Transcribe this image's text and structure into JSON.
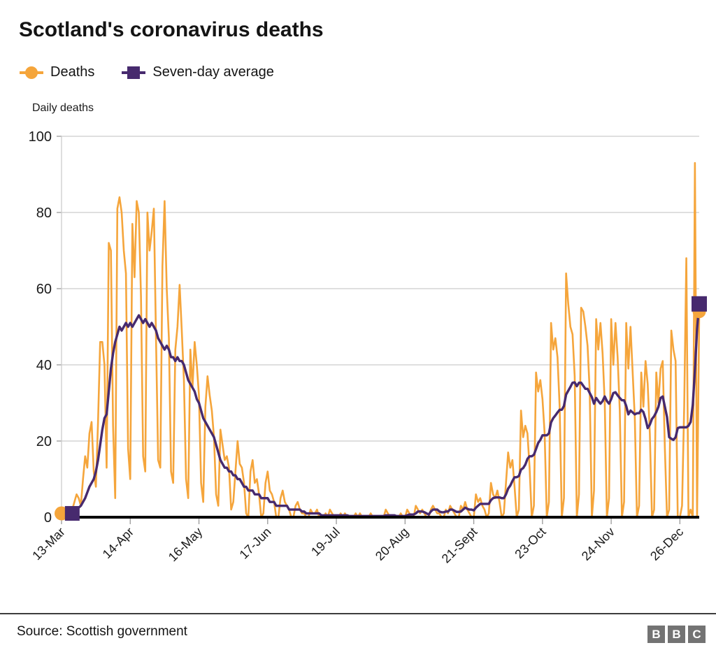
{
  "title": "Scotland's coronavirus deaths",
  "legend": [
    {
      "label": "Deaths",
      "marker": "circle",
      "color": "#f5a53b"
    },
    {
      "label": "Seven-day average",
      "marker": "square",
      "color": "#472a6e"
    }
  ],
  "axis_title": "Daily deaths",
  "source": "Source: Scottish government",
  "logo_letters": [
    "B",
    "B",
    "C"
  ],
  "colors": {
    "deaths_line": "#f5a53b",
    "average_line": "#472a6e",
    "gridline": "#cccccc",
    "axis_baseline": "#000000",
    "tick": "#999999",
    "tick_label": "#1a1a1a"
  },
  "chart_data": {
    "type": "line",
    "title": "Scotland's coronavirus deaths",
    "ylabel": "Daily deaths",
    "ylim": [
      0,
      100
    ],
    "yticks": [
      0,
      20,
      40,
      60,
      80,
      100
    ],
    "grid": true,
    "legend_position": "top-left",
    "x_start_label": "13-Mar",
    "x_tick_labels": [
      "13-Mar",
      "14-Apr",
      "16-May",
      "17-Jun",
      "19-Jul",
      "20-Aug",
      "21-Sept",
      "23-Oct",
      "24-Nov",
      "26-Dec"
    ],
    "x_tick_day_index": [
      0,
      32,
      64,
      96,
      128,
      160,
      192,
      224,
      256,
      288
    ],
    "series": [
      {
        "name": "Deaths",
        "color": "#f5a53b",
        "marker_first_last": "circle",
        "values": [
          1,
          1,
          0,
          2,
          2,
          2,
          4,
          6,
          5,
          3,
          10,
          16,
          13,
          22,
          25,
          12,
          8,
          25,
          46,
          46,
          40,
          13,
          72,
          70,
          24,
          5,
          81,
          84,
          80,
          70,
          64,
          18,
          10,
          77,
          63,
          83,
          80,
          58,
          16,
          12,
          80,
          70,
          75,
          81,
          47,
          15,
          13,
          66,
          83,
          60,
          47,
          12,
          9,
          44,
          50,
          61,
          49,
          36,
          10,
          5,
          44,
          34,
          46,
          40,
          32,
          9,
          4,
          29,
          37,
          32,
          28,
          21,
          6,
          3,
          23,
          19,
          15,
          16,
          13,
          2,
          4,
          12,
          20,
          14,
          13,
          9,
          1,
          0,
          12,
          15,
          9,
          10,
          6,
          0,
          1,
          9,
          12,
          7,
          6,
          4,
          0,
          0,
          5,
          7,
          4,
          3,
          2,
          0,
          0,
          3,
          4,
          2,
          1,
          1,
          0,
          0,
          2,
          1,
          1,
          2,
          0,
          0,
          0,
          1,
          0,
          2,
          1,
          0,
          0,
          0,
          1,
          0,
          1,
          0,
          0,
          0,
          0,
          1,
          0,
          1,
          0,
          0,
          0,
          0,
          1,
          0,
          0,
          0,
          0,
          0,
          0,
          2,
          1,
          0,
          0,
          0,
          0,
          0,
          1,
          0,
          0,
          2,
          1,
          0,
          0,
          3,
          2,
          1,
          2,
          1,
          0,
          0,
          2,
          3,
          2,
          1,
          1,
          0,
          0,
          2,
          1,
          3,
          2,
          1,
          0,
          0,
          3,
          2,
          4,
          2,
          1,
          0,
          0,
          6,
          4,
          5,
          3,
          2,
          0,
          1,
          9,
          6,
          5,
          7,
          4,
          0,
          1,
          9,
          17,
          13,
          15,
          8,
          0,
          2,
          28,
          21,
          24,
          22,
          13,
          0,
          3,
          38,
          33,
          36,
          31,
          22,
          0,
          4,
          51,
          44,
          47,
          42,
          29,
          0,
          5,
          64,
          56,
          50,
          48,
          37,
          0,
          6,
          55,
          54,
          50,
          45,
          33,
          0,
          7,
          52,
          44,
          51,
          43,
          30,
          0,
          5,
          52,
          40,
          51,
          42,
          28,
          0,
          4,
          51,
          39,
          50,
          38,
          26,
          0,
          3,
          38,
          29,
          41,
          35,
          22,
          0,
          2,
          38,
          30,
          39,
          41,
          18,
          0,
          2,
          49,
          44,
          41,
          0,
          0,
          3,
          29,
          68,
          0,
          2,
          0,
          93,
          0,
          54
        ]
      },
      {
        "name": "Seven-day average",
        "color": "#472a6e",
        "marker_first_last": "square",
        "values": [
          null,
          null,
          null,
          null,
          null,
          1,
          1.5,
          2,
          2.5,
          3,
          4,
          5,
          6.5,
          8,
          9,
          10,
          12,
          15,
          19,
          23,
          26,
          27,
          33,
          39,
          43,
          46,
          48,
          50,
          49,
          50,
          51,
          50,
          51,
          50,
          51,
          52,
          53,
          52,
          51,
          52,
          51,
          50,
          51,
          50,
          49,
          47,
          46,
          45,
          44,
          45,
          44,
          42,
          42,
          41,
          42,
          41,
          41,
          40,
          38,
          36,
          35,
          34,
          33,
          31,
          30,
          28,
          26,
          25,
          24,
          23,
          22,
          21,
          19,
          17,
          15,
          14,
          13,
          13,
          12,
          12,
          11,
          11,
          10,
          10,
          9,
          8,
          8,
          7,
          7,
          7,
          6,
          6,
          6,
          5,
          5,
          5,
          5,
          4,
          4,
          4,
          3,
          3,
          3,
          3,
          3,
          3,
          2,
          2,
          2,
          2,
          2,
          2,
          1.5,
          1.5,
          1,
          1,
          1,
          1,
          1,
          1,
          1,
          0.5,
          0.5,
          0.5,
          0.5,
          0.5,
          0.5,
          0.5,
          0.5,
          0.5,
          0.5,
          0.5,
          0.5,
          0.5,
          0.3,
          0.3,
          0.3,
          0.3,
          0.3,
          0.3,
          0.3,
          0.3,
          0.3,
          0.3,
          0.3,
          0.3,
          0.3,
          0.3,
          0.3,
          0.3,
          0.3,
          0.5,
          0.5,
          0.5,
          0.5,
          0.5,
          0.3,
          0.3,
          0.3,
          0.3,
          0.3,
          0.5,
          0.7,
          0.7,
          0.7,
          1,
          1.5,
          1.5,
          1.5,
          1.3,
          1,
          0.7,
          1.5,
          2,
          2,
          2,
          1.5,
          1.3,
          1.3,
          1.5,
          1.5,
          2,
          2,
          1.7,
          1.4,
          1.4,
          1.5,
          2,
          2.5,
          2.2,
          2,
          2,
          1.8,
          2.5,
          3,
          3.5,
          3.5,
          3.5,
          3.5,
          3.5,
          4.5,
          5,
          5.2,
          5.2,
          5.2,
          5,
          5,
          6,
          7.5,
          8.3,
          9.5,
          10.5,
          10.5,
          10.8,
          12.5,
          12.9,
          13.8,
          15.3,
          16,
          16,
          16.4,
          17.9,
          19.5,
          20.3,
          21.5,
          21.5,
          21.5,
          22,
          24.9,
          26,
          26.7,
          27.5,
          28.2,
          28.2,
          29.2,
          32.2,
          33.2,
          34.2,
          35.3,
          35.4,
          34.4,
          35.3,
          35.3,
          34.5,
          33.7,
          33.7,
          32.6,
          31.5,
          29.8,
          31.3,
          30.5,
          29.8,
          30.5,
          31.7,
          30.5,
          29.8,
          31,
          32.6,
          32.8,
          32,
          31.3,
          30.7,
          30.7,
          29.2,
          27,
          28,
          27.5,
          27,
          27.3,
          27.3,
          28.2,
          27.6,
          25.8,
          23.4,
          24.3,
          25.8,
          26.5,
          27.6,
          29,
          31.3,
          31.7,
          29,
          26.3,
          21,
          20.6,
          20.3,
          21,
          23.4,
          23.6,
          23.6,
          23.6,
          23.6,
          24,
          25,
          29.5,
          38.7,
          49.4,
          56
        ]
      }
    ]
  }
}
